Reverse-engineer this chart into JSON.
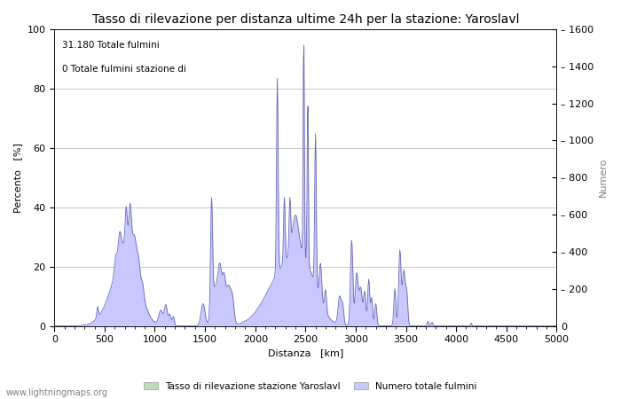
{
  "title": "Tasso di rilevazione per distanza ultime 24h per la stazione: Yaroslavl",
  "xlabel": "Distanza   [km]",
  "ylabel_left": "Percento   [%]",
  "ylabel_right": "Numero",
  "annotation_line1": "31.180 Totale fulmini",
  "annotation_line2": "0 Totale fulmini stazione di",
  "xlim": [
    0,
    5000
  ],
  "ylim_left": [
    0,
    100
  ],
  "ylim_right": [
    0,
    1600
  ],
  "xticks": [
    0,
    500,
    1000,
    1500,
    2000,
    2500,
    3000,
    3500,
    4000,
    4500,
    5000
  ],
  "yticks_left": [
    0,
    20,
    40,
    60,
    80,
    100
  ],
  "yticks_right": [
    0,
    200,
    400,
    600,
    800,
    1000,
    1200,
    1400,
    1600
  ],
  "legend_label_green": "Tasso di rilevazione stazione Yaroslavl",
  "legend_label_blue": "Numero totale fulmini",
  "fill_color_blue": "#c8c8ff",
  "line_color_blue": "#6666bb",
  "fill_color_green": "#bbddbb",
  "line_color_green": "#66aa66",
  "background_color": "#ffffff",
  "grid_color": "#c8c8c8",
  "watermark": "www.lightningmaps.org",
  "title_fontsize": 10,
  "axis_fontsize": 8,
  "tick_fontsize": 8,
  "watermark_fontsize": 7
}
